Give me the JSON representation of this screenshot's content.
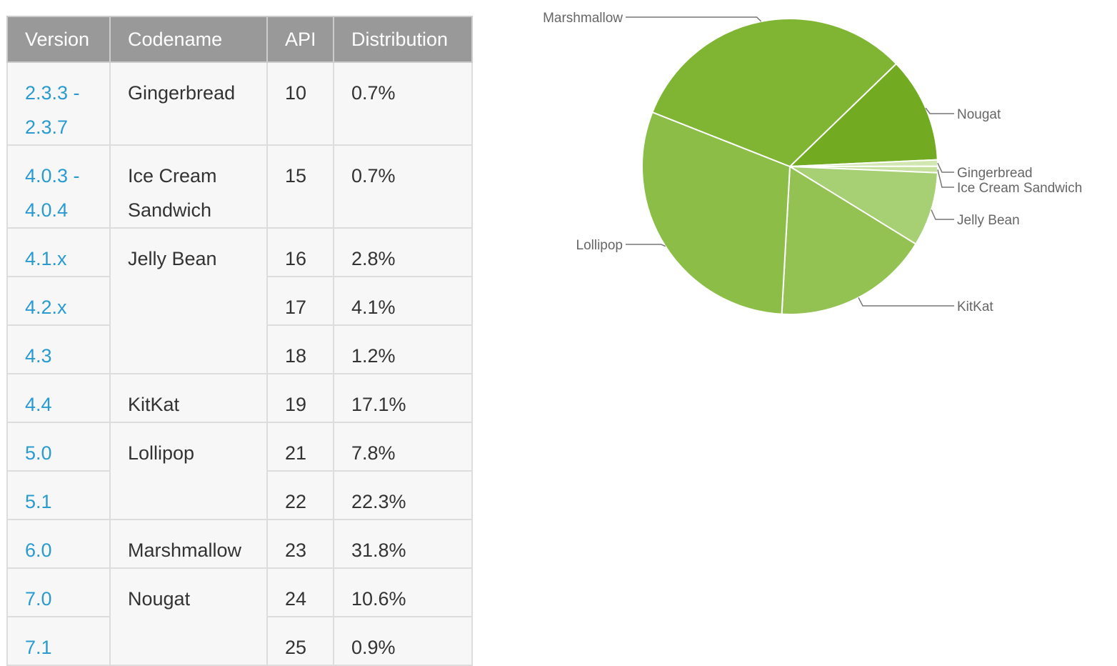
{
  "table": {
    "headers": [
      "Version",
      "Codename",
      "API",
      "Distribution"
    ],
    "rows": [
      {
        "version": "2.3.3 -\n2.3.7",
        "codename": "Gingerbread",
        "codename_rowspan": 1,
        "api": "10",
        "distribution": "0.7%"
      },
      {
        "version": "4.0.3 -\n4.0.4",
        "codename": "Ice Cream\nSandwich",
        "codename_rowspan": 1,
        "api": "15",
        "distribution": "0.7%"
      },
      {
        "version": "4.1.x",
        "codename": "Jelly Bean",
        "codename_rowspan": 3,
        "api": "16",
        "distribution": "2.8%"
      },
      {
        "version": "4.2.x",
        "api": "17",
        "distribution": "4.1%"
      },
      {
        "version": "4.3",
        "api": "18",
        "distribution": "1.2%"
      },
      {
        "version": "4.4",
        "codename": "KitKat",
        "codename_rowspan": 1,
        "api": "19",
        "distribution": "17.1%"
      },
      {
        "version": "5.0",
        "codename": "Lollipop",
        "codename_rowspan": 2,
        "api": "21",
        "distribution": "7.8%"
      },
      {
        "version": "5.1",
        "api": "22",
        "distribution": "22.3%"
      },
      {
        "version": "6.0",
        "codename": "Marshmallow",
        "codename_rowspan": 1,
        "api": "23",
        "distribution": "31.8%"
      },
      {
        "version": "7.0",
        "codename": "Nougat",
        "codename_rowspan": 2,
        "api": "24",
        "distribution": "10.6%"
      },
      {
        "version": "7.1",
        "api": "25",
        "distribution": "0.9%"
      }
    ]
  },
  "colors": {
    "header_bg": "#999999",
    "header_text": "#ffffff",
    "cell_bg": "#f7f7f7",
    "version_link": "#2a9bd1",
    "cell_text": "#333333",
    "label_text": "#666666"
  },
  "chart_data": {
    "type": "pie",
    "title": "",
    "slices": [
      {
        "label": "Nougat",
        "value": 11.5,
        "color": "#72ab22"
      },
      {
        "label": "Gingerbread",
        "value": 0.7,
        "color": "#d2e6b2"
      },
      {
        "label": "Ice Cream Sandwich",
        "value": 0.7,
        "color": "#c6e09e"
      },
      {
        "label": "Jelly Bean",
        "value": 8.1,
        "color": "#a7cf74"
      },
      {
        "label": "KitKat",
        "value": 17.1,
        "color": "#93c252"
      },
      {
        "label": "Lollipop",
        "value": 30.1,
        "color": "#8cbd47"
      },
      {
        "label": "Marshmallow",
        "value": 31.8,
        "color": "#80b534"
      }
    ]
  }
}
